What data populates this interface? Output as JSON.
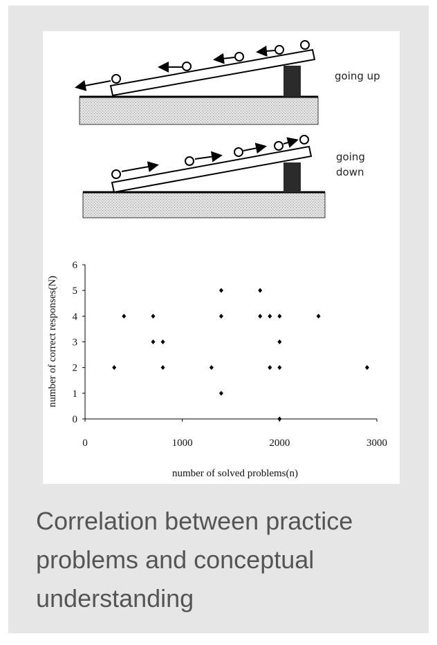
{
  "diagram": {
    "labels": [
      "going up",
      "going down"
    ]
  },
  "chart_data": {
    "type": "scatter",
    "x_label": "number of solved problems(n)",
    "y_label": "number of correct responses(N)",
    "x": [
      300,
      400,
      700,
      700,
      800,
      800,
      1300,
      1400,
      1400,
      1400,
      1800,
      1800,
      1900,
      1900,
      2000,
      2000,
      2000,
      2000,
      2400,
      2900
    ],
    "values": [
      2,
      4,
      4,
      3,
      3,
      2,
      2,
      5,
      4,
      1,
      5,
      4,
      4,
      2,
      4,
      3,
      2,
      0,
      4,
      2
    ],
    "color": "#000000",
    "xlim": [
      0,
      3000
    ],
    "xticks": [
      0,
      1000,
      2000,
      3000
    ],
    "ylim": [
      0,
      6
    ],
    "yticks": [
      0,
      1,
      2,
      3,
      4,
      5,
      6
    ]
  },
  "caption": "Correlation between practice problems and conceptual understanding"
}
